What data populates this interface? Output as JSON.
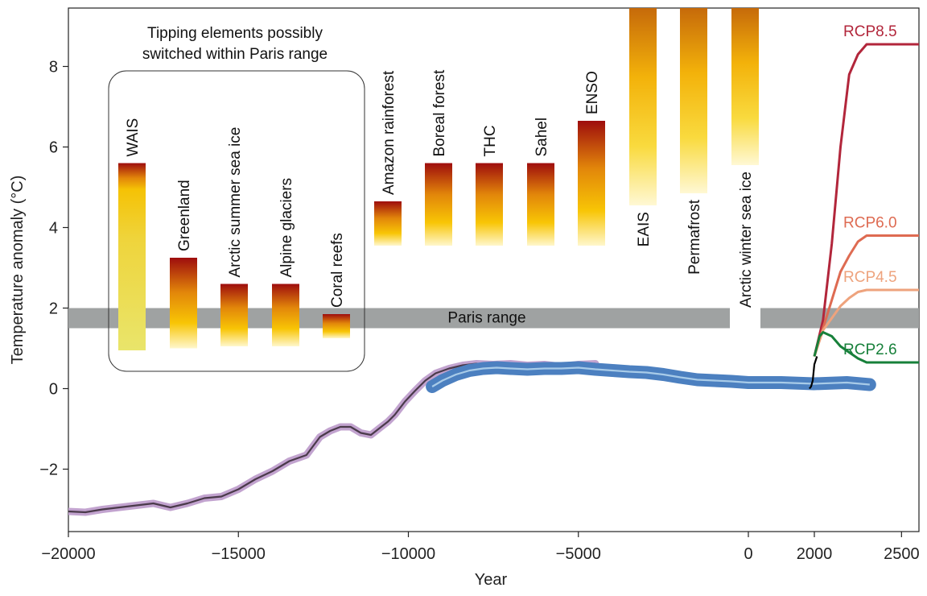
{
  "chart_data": {
    "type": "bar",
    "xlabel": "Year",
    "ylabel": "Temperature anomaly (°C)",
    "xlim": [
      -20000,
      2600
    ],
    "ylim": [
      -3.55,
      9.45
    ],
    "x_ticks": [
      -20000,
      -15000,
      -10000,
      -5000,
      0,
      2000,
      2500
    ],
    "x_tick_labels": [
      "−20000",
      "−15000",
      "−10000",
      "−5000",
      "0",
      "2000",
      "2500"
    ],
    "y_ticks": [
      -2,
      0,
      2,
      4,
      6,
      8
    ],
    "y_tick_labels": [
      "−2",
      "0",
      "2",
      "4",
      "6",
      "8"
    ],
    "paris_range": {
      "label": "Paris range",
      "low": 1.5,
      "high": 2.0
    },
    "group_label_lines": [
      "Tipping elements possibly",
      "switched within Paris range"
    ],
    "tipping_elements": [
      {
        "name": "WAIS",
        "low": 0.95,
        "high": 5.6,
        "group": "paris"
      },
      {
        "name": "Greenland",
        "low": 1.0,
        "high": 3.25,
        "group": "paris"
      },
      {
        "name": "Arctic summer sea ice",
        "low": 1.05,
        "high": 2.6,
        "group": "paris"
      },
      {
        "name": "Alpine glaciers",
        "low": 1.05,
        "high": 2.6,
        "group": "paris"
      },
      {
        "name": "Coral reefs",
        "low": 1.25,
        "high": 1.85,
        "group": "paris"
      },
      {
        "name": "Amazon rainforest",
        "low": 3.55,
        "high": 4.65,
        "group": "other"
      },
      {
        "name": "Boreal forest",
        "low": 3.55,
        "high": 5.6,
        "group": "other"
      },
      {
        "name": "THC",
        "low": 3.55,
        "high": 5.6,
        "group": "other"
      },
      {
        "name": "Sahel",
        "low": 3.55,
        "high": 5.6,
        "group": "other"
      },
      {
        "name": "ENSO",
        "low": 3.55,
        "high": 6.65,
        "group": "other"
      },
      {
        "name": "EAIS",
        "low": 4.55,
        "high": 9.45,
        "group": "other"
      },
      {
        "name": "Permafrost",
        "low": 4.85,
        "high": 9.45,
        "group": "other"
      },
      {
        "name": "Arctic winter sea ice",
        "low": 5.55,
        "high": 9.45,
        "group": "other"
      }
    ],
    "series": [
      {
        "kind": "reconstruction",
        "line_color": "#4a3a4a",
        "band_color": "#c2a3cf",
        "x": [
          -20000,
          -19500,
          -19000,
          -18500,
          -18000,
          -17500,
          -17000,
          -16500,
          -16000,
          -15500,
          -15000,
          -14500,
          -14000,
          -13500,
          -13000,
          -12600,
          -12300,
          -12000,
          -11700,
          -11400,
          -11100,
          -10800,
          -10600,
          -10400,
          -10100,
          -9800,
          -9500,
          -9200,
          -8800,
          -8400,
          -8000,
          -7500,
          -7000,
          -6500,
          -6000,
          -5500,
          -5000,
          -4500
        ],
        "y": [
          -3.05,
          -3.07,
          -3.0,
          -2.95,
          -2.9,
          -2.85,
          -2.95,
          -2.85,
          -2.72,
          -2.68,
          -2.5,
          -2.25,
          -2.05,
          -1.8,
          -1.65,
          -1.2,
          -1.05,
          -0.95,
          -0.95,
          -1.1,
          -1.15,
          -0.95,
          -0.82,
          -0.65,
          -0.32,
          -0.05,
          0.2,
          0.38,
          0.5,
          0.58,
          0.62,
          0.6,
          0.62,
          0.58,
          0.6,
          0.55,
          0.6,
          0.62
        ]
      },
      {
        "kind": "holocene",
        "line_color": "#a8cbe8",
        "band_color": "#4c80c0",
        "x": [
          -9300,
          -9000,
          -8600,
          -8200,
          -7800,
          -7400,
          -7000,
          -6500,
          -6000,
          -5500,
          -5000,
          -4500,
          -4000,
          -3500,
          -3000,
          -2500,
          -2000,
          -1500,
          -1000,
          -500,
          0,
          500,
          1000,
          1500,
          1850
        ],
        "y": [
          0.05,
          0.2,
          0.35,
          0.45,
          0.5,
          0.52,
          0.5,
          0.48,
          0.5,
          0.5,
          0.52,
          0.48,
          0.45,
          0.42,
          0.4,
          0.35,
          0.28,
          0.22,
          0.2,
          0.18,
          0.15,
          0.15,
          0.12,
          0.15,
          0.1
        ]
      },
      {
        "kind": "instrumental",
        "line_color": "#000000",
        "x": [
          1850,
          1900,
          1950,
          2000,
          2015
        ],
        "y": [
          0.0,
          0.05,
          0.2,
          0.6,
          0.8
        ]
      },
      {
        "name": "RCP8.5",
        "color": "#b2263b",
        "x": [
          2000,
          2050,
          2100,
          2150,
          2200,
          2250,
          2300,
          2600
        ],
        "y": [
          0.8,
          1.7,
          3.6,
          6.0,
          7.8,
          8.3,
          8.55,
          8.55
        ]
      },
      {
        "name": "RCP6.0",
        "color": "#de6b52",
        "x": [
          2000,
          2050,
          2100,
          2150,
          2200,
          2250,
          2300,
          2600
        ],
        "y": [
          0.8,
          1.5,
          2.2,
          2.9,
          3.3,
          3.65,
          3.8,
          3.8
        ]
      },
      {
        "name": "RCP4.5",
        "color": "#eea37d",
        "x": [
          2000,
          2050,
          2100,
          2150,
          2200,
          2250,
          2300,
          2600
        ],
        "y": [
          0.8,
          1.45,
          1.75,
          2.05,
          2.25,
          2.4,
          2.45,
          2.45
        ]
      },
      {
        "name": "RCP2.6",
        "color": "#17803a",
        "x": [
          2000,
          2030,
          2050,
          2100,
          2150,
          2200,
          2250,
          2300,
          2600
        ],
        "y": [
          0.8,
          1.3,
          1.4,
          1.3,
          1.05,
          0.9,
          0.75,
          0.65,
          0.65
        ]
      }
    ],
    "colors": {
      "paris_band": "#9fa2a2",
      "bar_top": "#9e0d0d",
      "bar_mid": "#f8c505",
      "bar_bottom": "#fff7cc",
      "wais_low": "#e7e368"
    }
  }
}
